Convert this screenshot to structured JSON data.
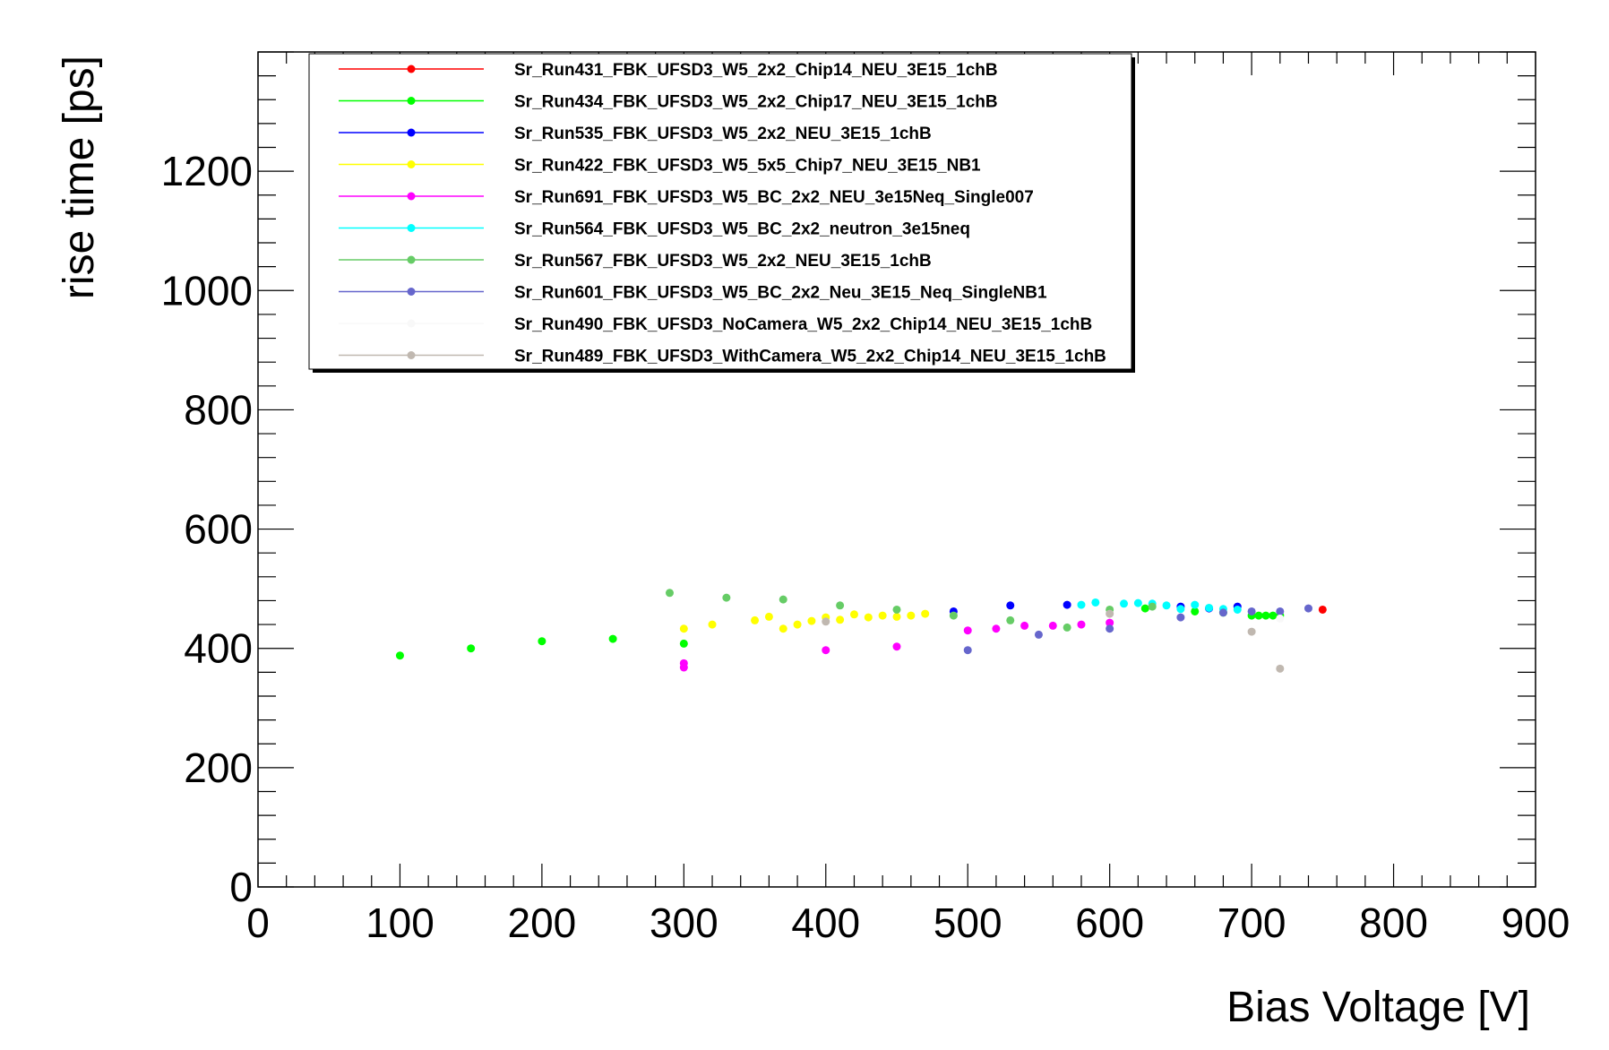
{
  "chart_data": {
    "type": "scatter",
    "title": "",
    "xlabel": "Bias Voltage [V]",
    "ylabel": "rise time [ps]",
    "xlim": [
      0,
      900
    ],
    "ylim": [
      0,
      1400
    ],
    "x_ticks": [
      0,
      100,
      200,
      300,
      400,
      500,
      600,
      700,
      800,
      900
    ],
    "y_ticks": [
      0,
      200,
      400,
      600,
      800,
      1000,
      1200
    ],
    "legend_position": "top-left",
    "grid": false,
    "series": [
      {
        "name": "Sr_Run431_FBK_UFSD3_W5_2x2_Chip14_NEU_3E15_1chB",
        "color": "#ff0000",
        "points": [
          [
            750,
            465
          ]
        ]
      },
      {
        "name": "Sr_Run434_FBK_UFSD3_W5_2x2_Chip17_NEU_3E15_1chB",
        "color": "#00ff00",
        "points": [
          [
            100,
            388
          ],
          [
            150,
            400
          ],
          [
            200,
            412
          ],
          [
            250,
            416
          ],
          [
            300,
            408
          ],
          [
            625,
            467
          ],
          [
            660,
            462
          ],
          [
            680,
            460
          ],
          [
            700,
            455
          ],
          [
            705,
            455
          ],
          [
            710,
            455
          ],
          [
            715,
            455
          ],
          [
            720,
            455
          ]
        ]
      },
      {
        "name": "Sr_Run535_FBK_UFSD3_W5_2x2_NEU_3E15_1chB",
        "color": "#0000ff",
        "points": [
          [
            490,
            462
          ],
          [
            530,
            472
          ],
          [
            570,
            473
          ],
          [
            650,
            470
          ],
          [
            670,
            467
          ],
          [
            690,
            470
          ]
        ]
      },
      {
        "name": "Sr_Run422_FBK_UFSD3_W5_5x5_Chip7_NEU_3E15_NB1",
        "color": "#ffff00",
        "points": [
          [
            300,
            433
          ],
          [
            320,
            440
          ],
          [
            350,
            447
          ],
          [
            360,
            453
          ],
          [
            370,
            433
          ],
          [
            380,
            440
          ],
          [
            390,
            446
          ],
          [
            400,
            452
          ],
          [
            410,
            448
          ],
          [
            420,
            457
          ],
          [
            430,
            452
          ],
          [
            440,
            455
          ],
          [
            450,
            453
          ],
          [
            460,
            455
          ],
          [
            470,
            458
          ]
        ]
      },
      {
        "name": "Sr_Run691_FBK_UFSD3_W5_BC_2x2_NEU_3e15Neq_Single007",
        "color": "#ff00ff",
        "points": [
          [
            300,
            375
          ],
          [
            300,
            368
          ],
          [
            400,
            397
          ],
          [
            450,
            403
          ],
          [
            500,
            430
          ],
          [
            520,
            433
          ],
          [
            540,
            438
          ],
          [
            560,
            438
          ],
          [
            580,
            440
          ],
          [
            600,
            443
          ]
        ]
      },
      {
        "name": "Sr_Run564_FBK_UFSD3_W5_BC_2x2_neutron_3e15neq",
        "color": "#00ffff",
        "points": [
          [
            580,
            473
          ],
          [
            590,
            477
          ],
          [
            610,
            475
          ],
          [
            620,
            476
          ],
          [
            630,
            475
          ],
          [
            640,
            472
          ],
          [
            650,
            466
          ],
          [
            660,
            473
          ],
          [
            670,
            468
          ],
          [
            680,
            466
          ],
          [
            690,
            465
          ]
        ]
      },
      {
        "name": "Sr_Run567_FBK_UFSD3_W5_2x2_NEU_3E15_1chB",
        "color": "#66cc66",
        "points": [
          [
            290,
            493
          ],
          [
            330,
            485
          ],
          [
            370,
            482
          ],
          [
            410,
            472
          ],
          [
            450,
            465
          ],
          [
            490,
            455
          ],
          [
            530,
            447
          ],
          [
            570,
            435
          ],
          [
            600,
            465
          ],
          [
            630,
            470
          ]
        ]
      },
      {
        "name": "Sr_Run601_FBK_UFSD3_W5_BC_2x2_Neu_3E15_Neq_SingleNB1",
        "color": "#6666cc",
        "points": [
          [
            500,
            397
          ],
          [
            550,
            423
          ],
          [
            600,
            433
          ],
          [
            650,
            452
          ],
          [
            680,
            460
          ],
          [
            700,
            462
          ],
          [
            720,
            462
          ],
          [
            740,
            467
          ]
        ]
      },
      {
        "name": "Sr_Run490_FBK_UFSD3_NoCamera_W5_2x2_Chip14_NEU_3E15_1chB",
        "color": "#f8f8f8",
        "points": [
          [
            720,
            450
          ]
        ]
      },
      {
        "name": "Sr_Run489_FBK_UFSD3_WithCamera_W5_2x2_Chip14_NEU_3E15_1chB",
        "color": "#c0b8b0",
        "points": [
          [
            400,
            445
          ],
          [
            600,
            458
          ],
          [
            700,
            428
          ],
          [
            720,
            366
          ]
        ]
      }
    ]
  }
}
